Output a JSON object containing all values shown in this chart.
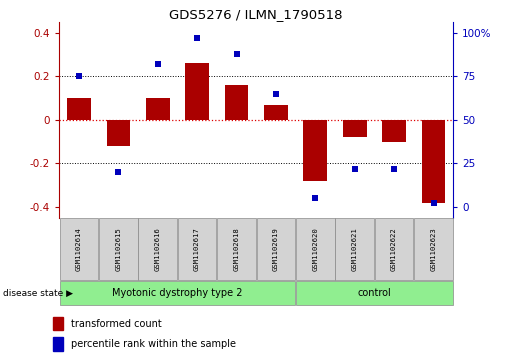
{
  "title": "GDS5276 / ILMN_1790518",
  "samples": [
    "GSM1102614",
    "GSM1102615",
    "GSM1102616",
    "GSM1102617",
    "GSM1102618",
    "GSM1102619",
    "GSM1102620",
    "GSM1102621",
    "GSM1102622",
    "GSM1102623"
  ],
  "bar_values": [
    0.1,
    -0.12,
    0.1,
    0.26,
    0.16,
    0.07,
    -0.28,
    -0.08,
    -0.1,
    -0.38
  ],
  "dot_pct": [
    75,
    20,
    82,
    97,
    88,
    65,
    5,
    22,
    22,
    2
  ],
  "ylim": [
    -0.45,
    0.45
  ],
  "yticks": [
    -0.4,
    -0.2,
    0.0,
    0.2,
    0.4
  ],
  "ytick_labels_left": [
    "-0.4",
    "-0.2",
    "0",
    "0.2",
    "0.4"
  ],
  "ytick_labels_right": [
    "0",
    "25",
    "50",
    "75",
    "100%"
  ],
  "bar_color": "#aa0000",
  "dot_color": "#0000bb",
  "zero_line_color": "#dd0000",
  "grid_color": "#000000",
  "group1_label": "Myotonic dystrophy type 2",
  "group2_label": "control",
  "group1_count": 6,
  "group2_count": 4,
  "disease_state_label": "disease state",
  "legend1": "transformed count",
  "legend2": "percentile rank within the sample",
  "group_bg_color": "#90ee90",
  "sample_box_color": "#d3d3d3",
  "background_color": "#ffffff"
}
